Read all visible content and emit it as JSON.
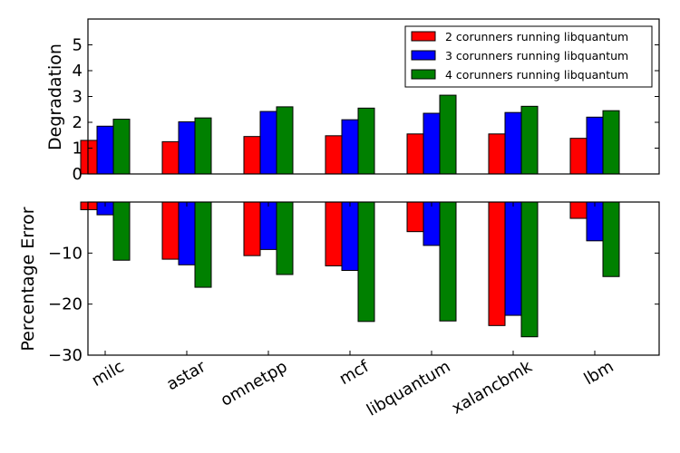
{
  "chart_data": [
    {
      "type": "bar",
      "ylabel": "Degradation",
      "ylim": [
        0,
        6
      ],
      "yticks": [
        "0",
        "1",
        "2",
        "3",
        "4",
        "5"
      ],
      "categories": [
        "milc",
        "astar",
        "omnetpp",
        "mcf",
        "libquantum",
        "xalancbmk",
        "lbm"
      ],
      "series": [
        {
          "name": "2 corunners running libquantum",
          "color": "#ff0000",
          "values": [
            1.3,
            1.25,
            1.45,
            1.48,
            1.55,
            1.55,
            1.38
          ]
        },
        {
          "name": "3 corunners running libquantum",
          "color": "#0000ff",
          "values": [
            1.85,
            2.02,
            2.42,
            2.1,
            2.35,
            2.38,
            2.2
          ]
        },
        {
          "name": "4 corunners running libquantum",
          "color": "#008000",
          "values": [
            2.12,
            2.17,
            2.6,
            2.55,
            3.05,
            2.62,
            2.45
          ]
        }
      ],
      "legend": "top-right"
    },
    {
      "type": "bar",
      "ylabel": "Percentage Error",
      "ylim": [
        -30,
        0
      ],
      "yticks": [
        "−30",
        "−20",
        "−10"
      ],
      "categories": [
        "milc",
        "astar",
        "omnetpp",
        "mcf",
        "libquantum",
        "xalancbmk",
        "lbm"
      ],
      "series": [
        {
          "name": "2 corunners running libquantum",
          "color": "#ff0000",
          "values": [
            -1.5,
            -11.2,
            -10.5,
            -12.5,
            -5.8,
            -24.2,
            -3.2
          ]
        },
        {
          "name": "3 corunners running libquantum",
          "color": "#0000ff",
          "values": [
            -2.5,
            -12.3,
            -9.3,
            -13.4,
            -8.5,
            -22.2,
            -7.6
          ]
        },
        {
          "name": "4 corunners running libquantum",
          "color": "#008000",
          "values": [
            -11.4,
            -16.7,
            -14.2,
            -23.4,
            -23.3,
            -26.4,
            -14.6
          ]
        }
      ]
    }
  ]
}
